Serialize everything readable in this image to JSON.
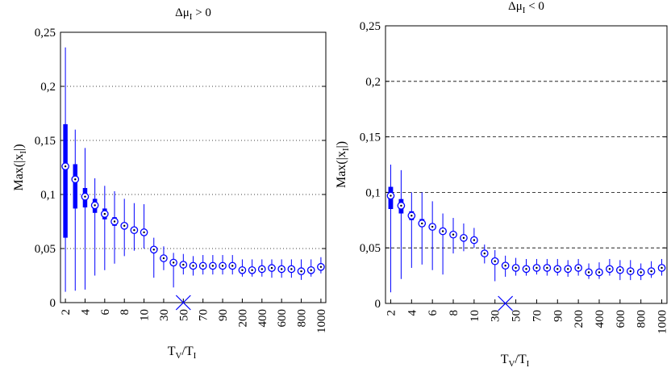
{
  "chart_data": [
    {
      "type": "boxplot",
      "title": "Δμ",
      "title_sub": "I",
      "title_rel": " > 0",
      "ylabel": "Max(|x",
      "ylabel_sub": "I",
      "ylabel_end": "|)",
      "xlabel": "T",
      "xlabel_sub1": "V",
      "xlabel_mid": "/T",
      "xlabel_sub2": "I",
      "ylim": [
        0,
        0.25
      ],
      "yticks": [
        "0",
        "0,05",
        "0,1",
        "0,15",
        "0,2",
        "0,25"
      ],
      "ytick_values": [
        0,
        0.05,
        0.1,
        0.15,
        0.2,
        0.25
      ],
      "grid": "dotted",
      "categories": [
        "2",
        "3",
        "4",
        "5",
        "6",
        "7",
        "8",
        "9",
        "10",
        "20",
        "30",
        "40",
        "50",
        "60",
        "70",
        "80",
        "90",
        "100",
        "200",
        "300",
        "400",
        "500",
        "600",
        "700",
        "800",
        "900",
        "1000"
      ],
      "xtick_labels": [
        "2",
        "4",
        "6",
        "8",
        "10",
        "30",
        "50",
        "70",
        "90",
        "200",
        "400",
        "600",
        "800",
        "1000"
      ],
      "medians": [
        0.126,
        0.114,
        0.098,
        0.09,
        0.082,
        0.075,
        0.071,
        0.067,
        0.065,
        0.049,
        0.041,
        0.037,
        0.035,
        0.034,
        0.034,
        0.034,
        0.034,
        0.034,
        0.03,
        0.03,
        0.031,
        0.032,
        0.031,
        0.031,
        0.029,
        0.03,
        0.033
      ],
      "q1": [
        0.06,
        0.087,
        0.088,
        0.083,
        0.077,
        0.071,
        0.068,
        0.065,
        0.063,
        0.047,
        0.039,
        0.035,
        0.033,
        0.032,
        0.032,
        0.032,
        0.032,
        0.032,
        0.028,
        0.028,
        0.029,
        0.03,
        0.029,
        0.029,
        0.027,
        0.028,
        0.031
      ],
      "q3": [
        0.165,
        0.128,
        0.106,
        0.096,
        0.087,
        0.079,
        0.074,
        0.07,
        0.067,
        0.051,
        0.043,
        0.039,
        0.037,
        0.036,
        0.036,
        0.036,
        0.036,
        0.036,
        0.032,
        0.032,
        0.033,
        0.034,
        0.033,
        0.033,
        0.031,
        0.032,
        0.035
      ],
      "whisker_low": [
        0.01,
        0.011,
        0.012,
        0.025,
        0.03,
        0.036,
        0.043,
        0.048,
        0.05,
        0.023,
        0.03,
        0.014,
        0.026,
        0.025,
        0.026,
        0.026,
        0.026,
        0.026,
        0.024,
        0.024,
        0.024,
        0.023,
        0.023,
        0.023,
        0.021,
        0.024,
        0.027
      ],
      "whisker_high": [
        0.236,
        0.16,
        0.143,
        0.115,
        0.108,
        0.103,
        0.096,
        0.092,
        0.091,
        0.06,
        0.052,
        0.046,
        0.045,
        0.043,
        0.044,
        0.044,
        0.044,
        0.044,
        0.04,
        0.04,
        0.04,
        0.04,
        0.04,
        0.04,
        0.04,
        0.04,
        0.042
      ],
      "marker": {
        "symbol": "×",
        "x_category": "50",
        "y": 0
      }
    },
    {
      "type": "boxplot",
      "title": "Δμ",
      "title_sub": "I",
      "title_rel": " < 0",
      "ylabel": "Max(|x",
      "ylabel_sub": "I",
      "ylabel_end": "|)",
      "xlabel": "T",
      "xlabel_sub1": "V",
      "xlabel_mid": "/T",
      "xlabel_sub2": "I",
      "ylim": [
        0,
        0.25
      ],
      "yticks": [
        "0",
        "0,05",
        "0,1",
        "0,15",
        "0,2",
        "0,25"
      ],
      "ytick_values": [
        0,
        0.05,
        0.1,
        0.15,
        0.2,
        0.25
      ],
      "grid": "dashed",
      "categories": [
        "2",
        "3",
        "4",
        "5",
        "6",
        "7",
        "8",
        "9",
        "10",
        "20",
        "30",
        "40",
        "50",
        "60",
        "70",
        "80",
        "90",
        "100",
        "200",
        "300",
        "400",
        "500",
        "600",
        "700",
        "800",
        "900",
        "1000"
      ],
      "xtick_labels": [
        "2",
        "4",
        "6",
        "8",
        "10",
        "30",
        "50",
        "70",
        "90",
        "200",
        "400",
        "600",
        "800",
        "1000"
      ],
      "medians": [
        0.097,
        0.088,
        0.079,
        0.072,
        0.069,
        0.065,
        0.062,
        0.059,
        0.057,
        0.045,
        0.038,
        0.034,
        0.032,
        0.031,
        0.032,
        0.032,
        0.031,
        0.031,
        0.032,
        0.028,
        0.028,
        0.031,
        0.03,
        0.029,
        0.028,
        0.029,
        0.032
      ],
      "q1": [
        0.085,
        0.081,
        0.075,
        0.069,
        0.066,
        0.063,
        0.06,
        0.057,
        0.055,
        0.043,
        0.036,
        0.032,
        0.03,
        0.029,
        0.03,
        0.03,
        0.029,
        0.029,
        0.03,
        0.026,
        0.026,
        0.029,
        0.028,
        0.027,
        0.026,
        0.027,
        0.03
      ],
      "q3": [
        0.105,
        0.094,
        0.083,
        0.076,
        0.072,
        0.068,
        0.064,
        0.061,
        0.059,
        0.047,
        0.04,
        0.036,
        0.034,
        0.033,
        0.034,
        0.034,
        0.033,
        0.033,
        0.034,
        0.03,
        0.03,
        0.033,
        0.032,
        0.031,
        0.03,
        0.031,
        0.034
      ],
      "whisker_low": [
        0.01,
        0.022,
        0.032,
        0.035,
        0.03,
        0.026,
        0.045,
        0.047,
        0.05,
        0.036,
        0.02,
        0.024,
        0.025,
        0.025,
        0.026,
        0.025,
        0.025,
        0.024,
        0.025,
        0.022,
        0.022,
        0.025,
        0.021,
        0.021,
        0.021,
        0.023,
        0.025
      ],
      "whisker_high": [
        0.125,
        0.12,
        0.1,
        0.1,
        0.092,
        0.081,
        0.077,
        0.072,
        0.068,
        0.053,
        0.048,
        0.043,
        0.041,
        0.04,
        0.04,
        0.04,
        0.04,
        0.039,
        0.04,
        0.036,
        0.037,
        0.04,
        0.039,
        0.039,
        0.036,
        0.038,
        0.04
      ],
      "marker": {
        "symbol": "×",
        "x_category": "40",
        "y": 0
      }
    }
  ]
}
